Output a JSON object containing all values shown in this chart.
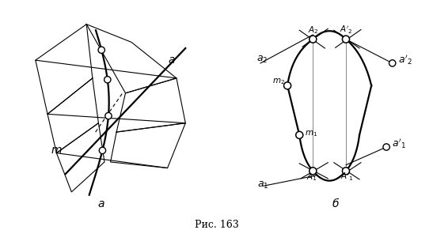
{
  "fig_width": 5.47,
  "fig_height": 2.91,
  "dpi": 100,
  "bg_color": "#ffffff",
  "caption": "Рис. 163"
}
